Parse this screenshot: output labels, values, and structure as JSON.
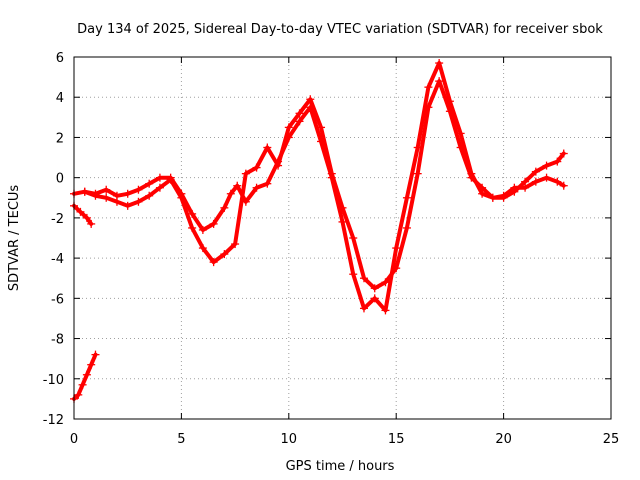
{
  "chart_data": {
    "type": "scatter",
    "title": "Day 134 of 2025, Sidereal Day-to-day VTEC variation (SDTVAR) for receiver sbok",
    "xlabel": "GPS time / hours",
    "ylabel": "SDTVAR / TECUs",
    "xlim": [
      0,
      25
    ],
    "ylim": [
      -12,
      6
    ],
    "xticks": [
      0,
      5,
      10,
      15,
      20,
      25
    ],
    "yticks": [
      -12,
      -10,
      -8,
      -6,
      -4,
      -2,
      0,
      2,
      4,
      6
    ],
    "grid": true,
    "marker": "+",
    "color": "#ff0000",
    "series": [
      {
        "name": "early-low-segment",
        "x": [
          0.0,
          0.2,
          0.4,
          0.6,
          0.8,
          1.0
        ],
        "y": [
          -11.0,
          -10.8,
          -10.3,
          -9.8,
          -9.3,
          -8.8
        ]
      },
      {
        "name": "early-dip-segment",
        "x": [
          0.0,
          0.3,
          0.6,
          0.8
        ],
        "y": [
          -1.4,
          -1.7,
          -2.0,
          -2.3
        ]
      },
      {
        "name": "main-trace-a",
        "x": [
          0.0,
          0.5,
          1.0,
          1.5,
          2.0,
          2.5,
          3.0,
          3.5,
          4.0,
          4.5,
          5.0,
          5.5,
          6.0,
          6.5,
          7.0,
          7.3,
          7.6,
          8.0,
          8.5,
          9.0,
          9.5,
          10.0,
          10.5,
          11.0,
          11.5,
          12.0,
          12.5,
          13.0,
          13.5,
          14.0,
          14.5,
          15.0,
          15.5,
          16.0,
          16.5,
          17.0,
          17.5,
          18.0,
          18.5,
          19.0,
          19.5,
          20.0,
          20.5,
          21.0,
          21.5,
          22.0,
          22.5,
          22.8
        ],
        "y": [
          -0.8,
          -0.7,
          -0.8,
          -0.6,
          -0.9,
          -0.8,
          -0.6,
          -0.3,
          0.0,
          0.0,
          -0.8,
          -1.8,
          -2.6,
          -2.3,
          -1.5,
          -0.8,
          -0.4,
          -1.2,
          -0.5,
          -0.3,
          0.8,
          2.0,
          2.8,
          3.5,
          1.8,
          0.0,
          -2.2,
          -4.8,
          -6.5,
          -6.0,
          -6.6,
          -3.5,
          -1.0,
          1.5,
          4.5,
          5.7,
          3.8,
          2.2,
          0.2,
          -0.8,
          -1.0,
          -0.9,
          -0.5,
          -0.5,
          -0.2,
          0.0,
          -0.2,
          -0.4
        ]
      },
      {
        "name": "main-trace-b",
        "x": [
          0.5,
          1.0,
          1.5,
          2.0,
          2.5,
          3.0,
          3.5,
          4.0,
          4.5,
          5.0,
          5.5,
          6.0,
          6.5,
          7.0,
          7.5,
          8.0,
          8.5,
          9.0,
          9.5,
          10.0,
          10.5,
          11.0,
          11.5,
          12.0,
          12.5,
          13.0,
          13.5,
          14.0,
          14.5,
          15.0,
          15.5,
          16.0,
          16.5,
          17.0,
          17.5,
          18.0,
          18.5,
          19.0,
          19.5,
          20.0,
          20.5,
          21.0,
          21.5,
          22.0,
          22.5,
          22.8
        ],
        "y": [
          -0.7,
          -0.9,
          -1.0,
          -1.2,
          -1.4,
          -1.2,
          -0.9,
          -0.5,
          -0.1,
          -1.0,
          -2.5,
          -3.5,
          -4.2,
          -3.8,
          -3.3,
          0.2,
          0.5,
          1.5,
          0.6,
          2.5,
          3.2,
          3.9,
          2.5,
          0.2,
          -1.5,
          -3.0,
          -5.0,
          -5.5,
          -5.2,
          -4.5,
          -2.5,
          0.2,
          3.5,
          4.8,
          3.3,
          1.5,
          0.0,
          -0.5,
          -1.0,
          -1.0,
          -0.7,
          -0.2,
          0.3,
          0.6,
          0.8,
          1.2
        ]
      }
    ]
  }
}
